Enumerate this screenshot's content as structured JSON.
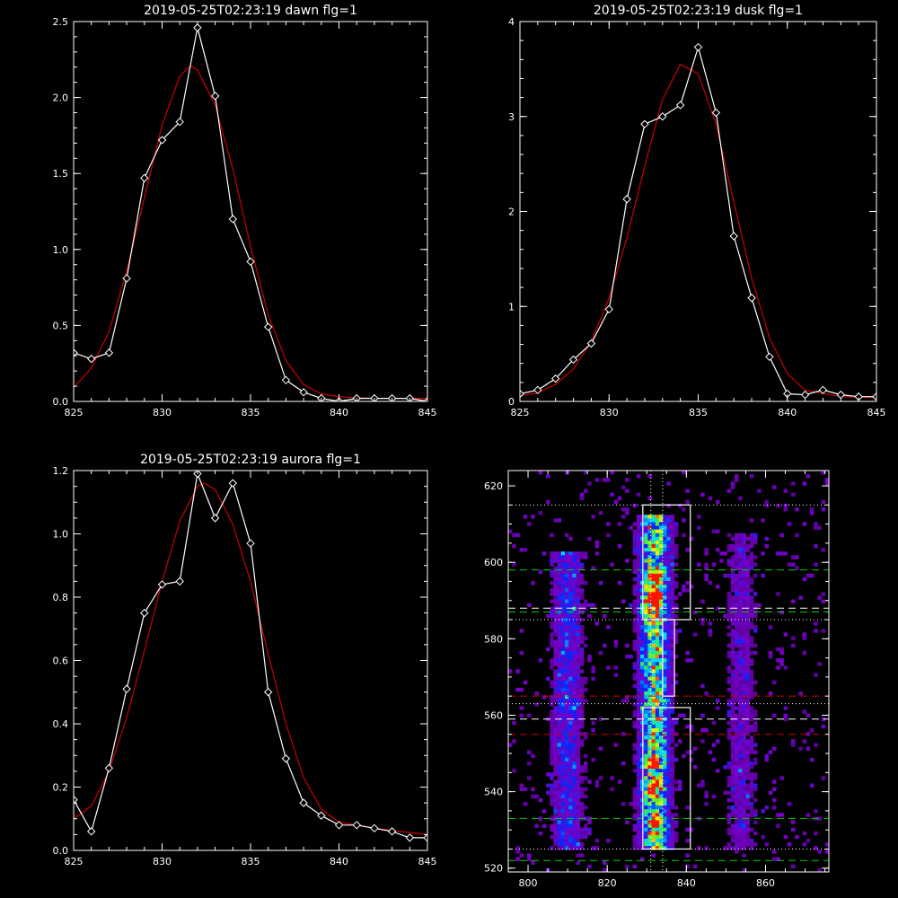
{
  "chart_data": [
    {
      "type": "line",
      "title": "2019-05-25T02:23:19 dawn flg=1",
      "xlabel": "",
      "ylabel": "",
      "xlim": [
        825,
        845
      ],
      "ylim": [
        0,
        2.5
      ],
      "xticks": [
        "825",
        "830",
        "835",
        "840",
        "845"
      ],
      "yticks": [
        "0.0",
        "0.5",
        "1.0",
        "1.5",
        "2.0",
        "2.5"
      ],
      "series": [
        {
          "kind": "data",
          "color": "#ffffff",
          "marker": "diamond",
          "x": [
            825,
            826,
            827,
            828,
            829,
            830,
            831,
            832,
            833,
            834,
            835,
            836,
            837,
            838,
            839,
            840,
            841,
            842,
            843,
            844,
            845
          ],
          "y": [
            0.32,
            0.28,
            0.32,
            0.81,
            1.47,
            1.72,
            1.84,
            2.46,
            2.01,
            1.2,
            0.92,
            0.49,
            0.14,
            0.06,
            0.02,
            0.0,
            0.02,
            0.02,
            0.02,
            0.02,
            0.0
          ]
        },
        {
          "kind": "fit",
          "color": "#cc0000",
          "x": [
            825,
            826,
            827,
            828,
            829,
            830,
            831,
            831.6,
            832,
            833,
            834,
            835,
            836,
            837,
            838,
            839,
            840,
            842,
            845
          ],
          "y": [
            0.09,
            0.22,
            0.46,
            0.86,
            1.34,
            1.82,
            2.14,
            2.21,
            2.18,
            1.95,
            1.53,
            1.02,
            0.57,
            0.27,
            0.11,
            0.05,
            0.03,
            0.02,
            0.02
          ]
        }
      ]
    },
    {
      "type": "line",
      "title": "2019-05-25T02:23:19 dusk flg=1",
      "xlabel": "",
      "ylabel": "",
      "xlim": [
        825,
        845
      ],
      "ylim": [
        0,
        4
      ],
      "xticks": [
        "825",
        "830",
        "835",
        "840",
        "845"
      ],
      "yticks": [
        "0",
        "1",
        "2",
        "3",
        "4"
      ],
      "series": [
        {
          "kind": "data",
          "color": "#ffffff",
          "marker": "diamond",
          "x": [
            825,
            826,
            827,
            828,
            829,
            830,
            831,
            832,
            833,
            834,
            835,
            836,
            837,
            838,
            839,
            840,
            841,
            842,
            843,
            844,
            845
          ],
          "y": [
            0.08,
            0.12,
            0.24,
            0.44,
            0.61,
            0.97,
            2.13,
            2.92,
            3.0,
            3.12,
            3.73,
            3.04,
            1.74,
            1.09,
            0.47,
            0.08,
            0.07,
            0.12,
            0.07,
            0.05,
            0.05
          ]
        },
        {
          "kind": "fit",
          "color": "#cc0000",
          "x": [
            825,
            826,
            827,
            828,
            829,
            830,
            831,
            832,
            833,
            834,
            835,
            836,
            837,
            838,
            839,
            840,
            841,
            843,
            845
          ],
          "y": [
            0.06,
            0.09,
            0.18,
            0.34,
            0.63,
            1.09,
            1.72,
            2.48,
            3.18,
            3.55,
            3.45,
            2.92,
            2.1,
            1.3,
            0.67,
            0.29,
            0.12,
            0.05,
            0.04
          ]
        }
      ]
    },
    {
      "type": "line",
      "title": "2019-05-25T02:23:19 aurora flg=1",
      "xlabel": "",
      "ylabel": "",
      "xlim": [
        825,
        845
      ],
      "ylim": [
        0,
        1.2
      ],
      "xticks": [
        "825",
        "830",
        "835",
        "840",
        "845"
      ],
      "yticks": [
        "0.0",
        "0.2",
        "0.4",
        "0.6",
        "0.8",
        "1.0",
        "1.2"
      ],
      "series": [
        {
          "kind": "data",
          "color": "#ffffff",
          "marker": "diamond",
          "x": [
            825,
            826,
            827,
            828,
            829,
            830,
            831,
            832,
            833,
            834,
            835,
            836,
            837,
            838,
            839,
            840,
            841,
            842,
            843,
            844,
            845
          ],
          "y": [
            0.16,
            0.06,
            0.26,
            0.51,
            0.75,
            0.84,
            0.85,
            1.19,
            1.05,
            1.16,
            0.97,
            0.5,
            0.29,
            0.15,
            0.11,
            0.08,
            0.08,
            0.07,
            0.06,
            0.04,
            0.04
          ]
        },
        {
          "kind": "fit",
          "color": "#cc0000",
          "x": [
            825,
            826,
            827,
            828,
            829,
            830,
            831,
            832,
            832.4,
            833,
            834,
            835,
            836,
            837,
            838,
            839,
            840,
            842,
            845
          ],
          "y": [
            0.1,
            0.14,
            0.25,
            0.42,
            0.63,
            0.85,
            1.04,
            1.15,
            1.16,
            1.14,
            1.03,
            0.85,
            0.62,
            0.4,
            0.23,
            0.13,
            0.09,
            0.07,
            0.05
          ]
        }
      ]
    },
    {
      "type": "heatmap",
      "title": "",
      "xlabel": "",
      "ylabel": "",
      "xlim": [
        795,
        876
      ],
      "ylim": [
        519,
        624
      ],
      "xticks": [
        "800",
        "820",
        "840",
        "860"
      ],
      "yticks": [
        "520",
        "540",
        "560",
        "580",
        "600",
        "620"
      ],
      "columns": [
        {
          "x": 810,
          "y0": 525,
          "y1": 603,
          "half_width": 4,
          "intensity": 0.45
        },
        {
          "x": 832,
          "y0": 525,
          "y1": 612,
          "half_width": 4,
          "intensity": 0.85
        },
        {
          "x": 854,
          "y0": 525,
          "y1": 608,
          "half_width": 4,
          "intensity": 0.28
        }
      ],
      "hotspots": [
        {
          "x": 832,
          "y": 596
        },
        {
          "x": 832,
          "y": 591
        },
        {
          "x": 831,
          "y": 588
        },
        {
          "x": 832,
          "y": 541
        },
        {
          "x": 833,
          "y": 531
        },
        {
          "x": 831,
          "y": 548
        }
      ],
      "boxes": [
        {
          "x0": 829,
          "x1": 841,
          "y0": 585,
          "y1": 615
        },
        {
          "x0": 829,
          "x1": 841,
          "y0": 525,
          "y1": 562
        },
        {
          "x0": 834,
          "x1": 837,
          "y0": 565,
          "y1": 585
        }
      ],
      "dotted_h": [
        615,
        585,
        563,
        525
      ],
      "dotted_v": [
        831,
        834
      ],
      "dashed_h": [
        {
          "y": 598,
          "color": "#00cc00"
        },
        {
          "y": 588,
          "color": "#ffffff"
        },
        {
          "y": 587,
          "color": "#00cc00"
        },
        {
          "y": 565,
          "color": "#cc0000"
        },
        {
          "y": 559,
          "color": "#ffffff"
        },
        {
          "y": 555,
          "color": "#cc0000"
        },
        {
          "y": 533,
          "color": "#00cc00"
        },
        {
          "y": 522,
          "color": "#00cc00"
        }
      ]
    }
  ]
}
